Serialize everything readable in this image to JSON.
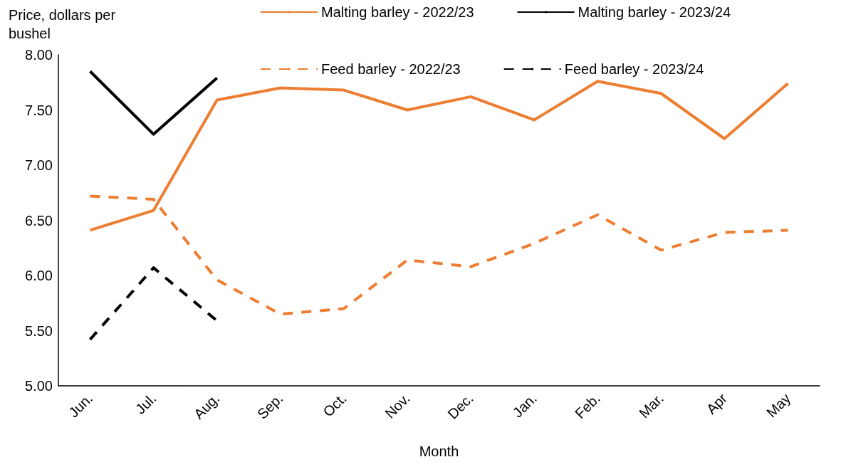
{
  "chart_data": {
    "type": "line",
    "ylabel": "Price, dollars per bushel",
    "xlabel": "Month",
    "categories": [
      "Jun.",
      "Jul.",
      "Aug.",
      "Sep.",
      "Oct.",
      "Nov.",
      "Dec.",
      "Jan.",
      "Feb.",
      "Mar.",
      "Apr",
      "May"
    ],
    "series": [
      {
        "name": "Malting barley - 2022/23",
        "color": "#ed7d31",
        "line_style": "solid",
        "values": [
          6.41,
          6.59,
          7.59,
          7.7,
          7.68,
          7.5,
          7.62,
          7.41,
          7.76,
          7.65,
          7.24,
          7.74
        ]
      },
      {
        "name": "Malting barley - 2023/24",
        "color": "#000000",
        "line_style": "solid",
        "values": [
          7.85,
          7.28,
          7.79,
          null,
          null,
          null,
          null,
          null,
          null,
          null,
          null,
          null
        ]
      },
      {
        "name": "Feed barley - 2022/23",
        "color": "#ed7d31",
        "line_style": "dashed",
        "values": [
          6.72,
          6.69,
          5.96,
          5.65,
          5.7,
          6.14,
          6.08,
          6.29,
          6.55,
          6.23,
          6.39,
          6.41
        ]
      },
      {
        "name": "Feed barley - 2023/24",
        "color": "#000000",
        "line_style": "dashed",
        "values": [
          5.42,
          6.07,
          5.59,
          null,
          null,
          null,
          null,
          null,
          null,
          null,
          null,
          null
        ]
      }
    ],
    "ylim": [
      5,
      8
    ],
    "yticks": [
      {
        "value": 5,
        "label": "5.00"
      },
      {
        "value": 5.5,
        "label": "5.50"
      },
      {
        "value": 6,
        "label": "6.00"
      },
      {
        "value": 6.5,
        "label": "6.50"
      },
      {
        "value": 7,
        "label": "7.00"
      },
      {
        "value": 7.5,
        "label": "7.50"
      },
      {
        "value": 8,
        "label": "8.00"
      }
    ],
    "grid": false,
    "legend": "top",
    "marker": "none"
  }
}
